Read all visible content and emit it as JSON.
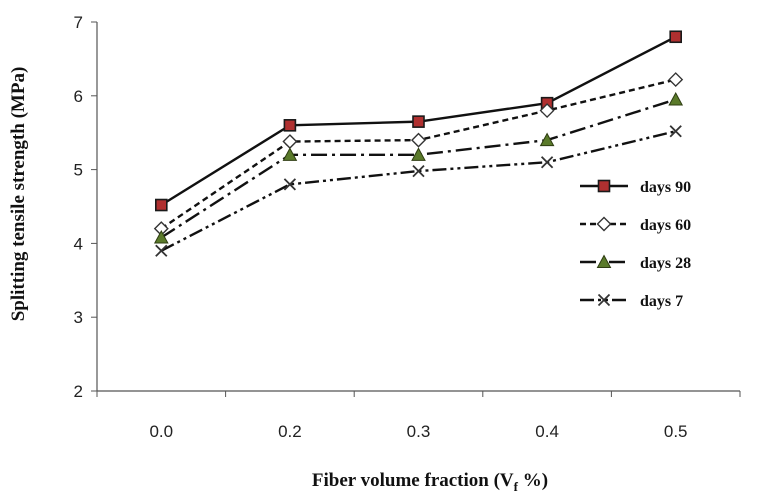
{
  "chart_data": {
    "type": "line",
    "title": "",
    "xlabel": "Fiber volume fraction (V",
    "xlabel_sub": "f",
    "xlabel_tail": " %)",
    "ylabel": "Splitting tensile strength  (MPa)",
    "categories": [
      "0.0",
      "0.2",
      "0.3",
      "0.4",
      "0.5"
    ],
    "ylim": [
      2,
      7
    ],
    "yticks": [
      "2",
      "3",
      "4",
      "5",
      "6",
      "7"
    ],
    "grid": false,
    "legend_position": "right",
    "series": [
      {
        "name": "days 90",
        "values": [
          4.52,
          5.6,
          5.65,
          5.9,
          6.8
        ],
        "marker": "square",
        "dash": "",
        "marker_fill": "#b03030"
      },
      {
        "name": "days 60",
        "values": [
          4.2,
          5.38,
          5.4,
          5.8,
          6.22
        ],
        "marker": "diamond",
        "dash": "6 4",
        "marker_fill": "#ffffff"
      },
      {
        "name": "days 28",
        "values": [
          4.08,
          5.2,
          5.2,
          5.4,
          5.95
        ],
        "marker": "triangle",
        "dash": "16 5 3 5",
        "marker_fill": "#5a7a2a"
      },
      {
        "name": "days 7",
        "values": [
          3.9,
          4.8,
          4.98,
          5.1,
          5.52
        ],
        "marker": "x",
        "dash": "14 4 3 4 3 4",
        "marker_fill": "#333333"
      }
    ]
  }
}
